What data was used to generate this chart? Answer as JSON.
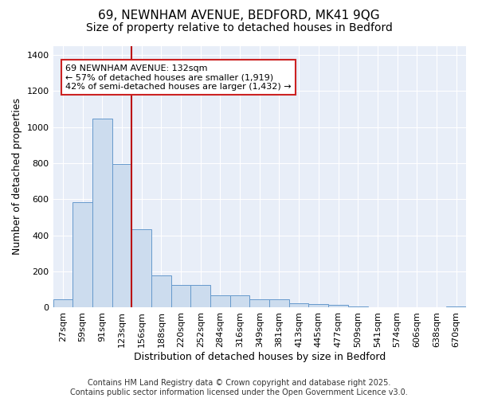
{
  "title": "69, NEWNHAM AVENUE, BEDFORD, MK41 9QG",
  "subtitle": "Size of property relative to detached houses in Bedford",
  "xlabel": "Distribution of detached houses by size in Bedford",
  "ylabel": "Number of detached properties",
  "categories": [
    "27sqm",
    "59sqm",
    "91sqm",
    "123sqm",
    "156sqm",
    "188sqm",
    "220sqm",
    "252sqm",
    "284sqm",
    "316sqm",
    "349sqm",
    "381sqm",
    "413sqm",
    "445sqm",
    "477sqm",
    "509sqm",
    "541sqm",
    "574sqm",
    "606sqm",
    "638sqm",
    "670sqm"
  ],
  "values": [
    47,
    585,
    1048,
    795,
    435,
    180,
    125,
    125,
    68,
    68,
    47,
    47,
    22,
    20,
    15,
    8,
    0,
    0,
    0,
    0,
    8
  ],
  "bar_color": "#ccdcee",
  "bar_edge_color": "#6699cc",
  "vline_x": 3.5,
  "vline_color": "#bb1111",
  "annotation_text": "69 NEWNHAM AVENUE: 132sqm\n← 57% of detached houses are smaller (1,919)\n42% of semi-detached houses are larger (1,432) →",
  "annotation_box_facecolor": "#ffffff",
  "annotation_box_edgecolor": "#cc2222",
  "ylim": [
    0,
    1450
  ],
  "yticks": [
    0,
    200,
    400,
    600,
    800,
    1000,
    1200,
    1400
  ],
  "bg_color": "#ffffff",
  "plot_bg_color": "#e8eef8",
  "grid_color": "#ffffff",
  "footer": "Contains HM Land Registry data © Crown copyright and database right 2025.\nContains public sector information licensed under the Open Government Licence v3.0.",
  "title_fontsize": 11,
  "subtitle_fontsize": 10,
  "xlabel_fontsize": 9,
  "ylabel_fontsize": 9,
  "tick_fontsize": 8,
  "footer_fontsize": 7
}
